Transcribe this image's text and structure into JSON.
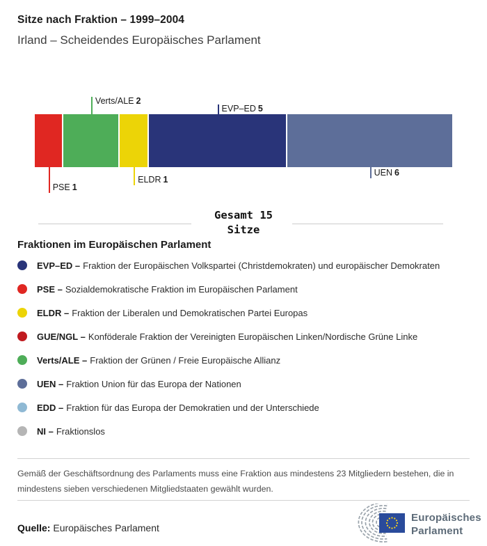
{
  "header": {
    "title": "Sitze nach Fraktion – 1999–2004",
    "subtitle": "Irland – Scheidendes Europäisches Parlament"
  },
  "chart_data": {
    "type": "bar",
    "orientation": "horizontal-stacked",
    "total_seats": 15,
    "title": "Sitze nach Fraktion – 1999–2004",
    "segments": [
      {
        "name": "PSE",
        "seats": 1,
        "color": "#e02722",
        "callout_side": "below",
        "tick_len": 37
      },
      {
        "name": "Verts/ALE",
        "seats": 2,
        "color": "#4ead58",
        "callout_side": "above",
        "tick_len": 25
      },
      {
        "name": "ELDR",
        "seats": 1,
        "color": "#ecd407",
        "callout_side": "below",
        "tick_len": 26
      },
      {
        "name": "EVP–ED",
        "seats": 5,
        "color": "#293479",
        "callout_side": "above",
        "tick_len": 14
      },
      {
        "name": "UEN",
        "seats": 6,
        "color": "#5d6e99",
        "callout_side": "below",
        "tick_len": 16
      }
    ]
  },
  "summary": {
    "line1": "Gesamt 15",
    "line2": "Sitze"
  },
  "legend": {
    "heading": "Fraktionen im Europäischen Parlament",
    "items": [
      {
        "abbr": "EVP–ED –",
        "description": "Fraktion der Europäischen Volkspartei (Christdemokraten) und europäischer Demokraten",
        "color": "#293479"
      },
      {
        "abbr": "PSE –",
        "description": "Sozialdemokratische Fraktion im Europäischen Parlament",
        "color": "#e02722"
      },
      {
        "abbr": "ELDR –",
        "description": "Fraktion der Liberalen und Demokratischen Partei Europas",
        "color": "#ecd407"
      },
      {
        "abbr": "GUE/NGL –",
        "description": "Konföderale Fraktion der Vereinigten Europäischen Linken/Nordische Grüne Linke",
        "color": "#c01a1f"
      },
      {
        "abbr": "Verts/ALE –",
        "description": "Fraktion der Grünen / Freie Europäische Allianz",
        "color": "#4ead58"
      },
      {
        "abbr": "UEN –",
        "description": "Fraktion Union für das Europa der Nationen",
        "color": "#5d6e99"
      },
      {
        "abbr": "EDD –",
        "description": "Fraktion für das Europa der Demokratien und der Unterschiede",
        "color": "#8fb9d4"
      },
      {
        "abbr": "NI –",
        "description": "Fraktionslos",
        "color": "#b5b5b5"
      }
    ]
  },
  "footnote": "Gemäß der Geschäftsordnung des Parlaments muss eine Fraktion aus mindestens 23 Mitgliedern bestehen, die in mindestens sieben verschiedenen Mitgliedstaaten gewählt wurden.",
  "source": {
    "label": "Quelle:",
    "value": "Europäisches Parlament"
  },
  "logo": {
    "line1": "Europäisches",
    "line2": "Parlament",
    "flag_color": "#2a4b9b",
    "star_color": "#ffd617",
    "arc_color": "#9aa3ab"
  }
}
